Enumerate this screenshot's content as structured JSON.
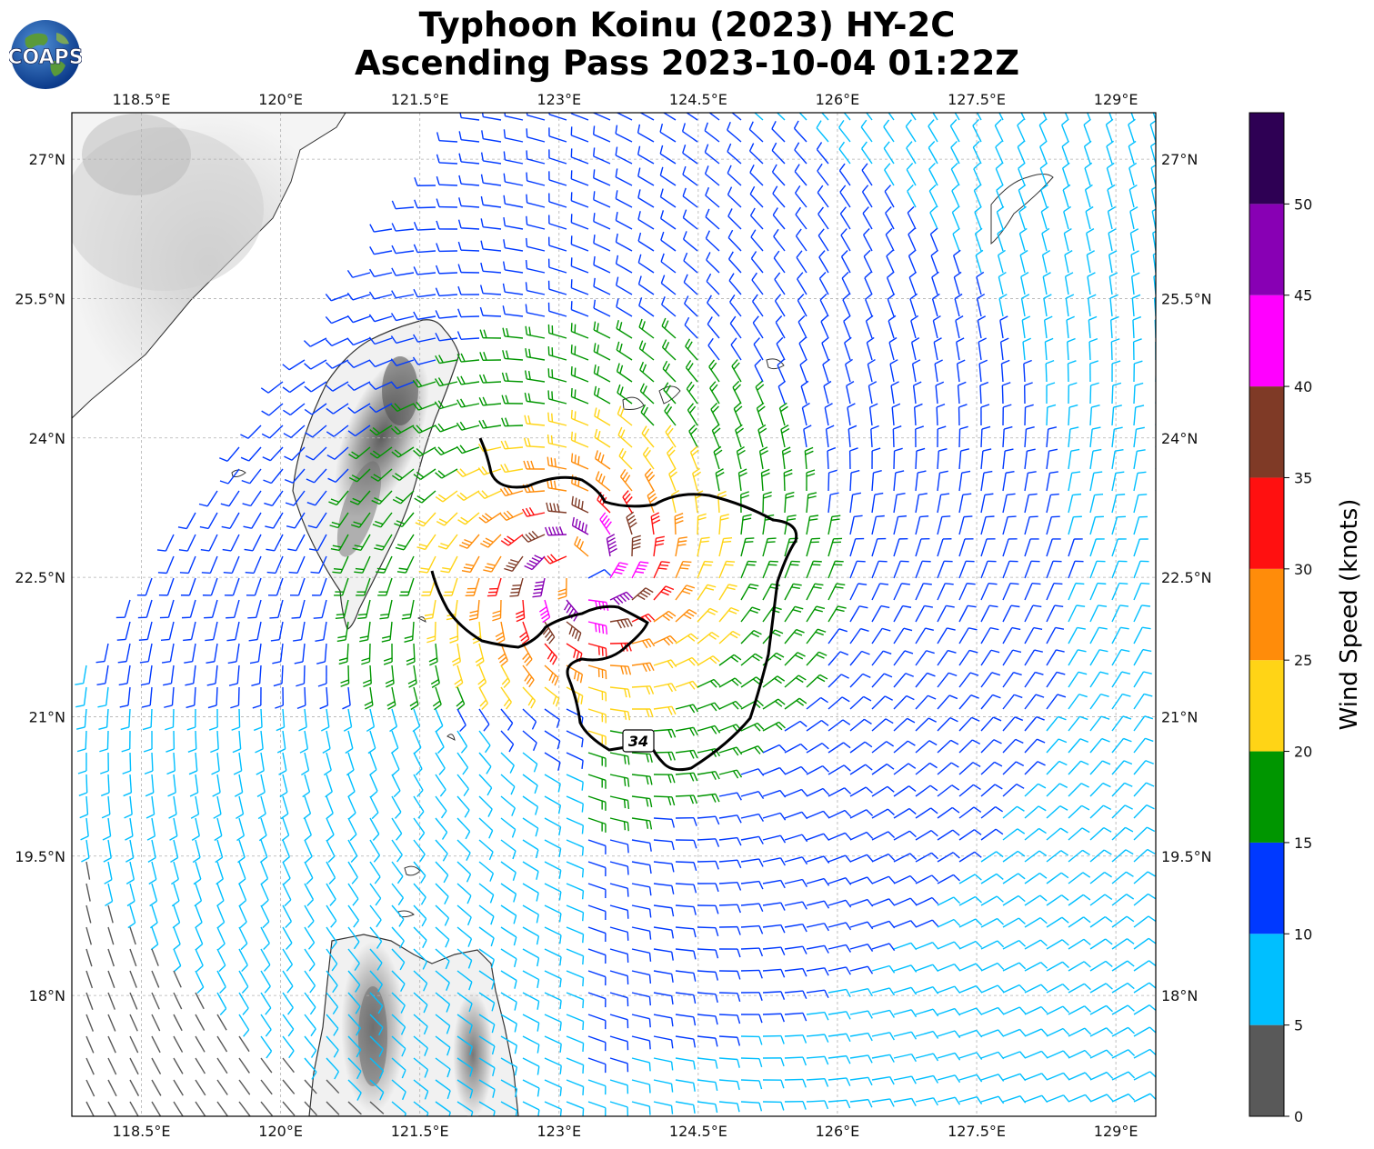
{
  "title": {
    "line1": "Typhoon Koinu (2023) HY-2C",
    "line2": "Ascending Pass 2023-10-04 01:22Z"
  },
  "logo": {
    "text": "COAPS",
    "icon": "globe-icon"
  },
  "map": {
    "lon_ticks": [
      "118.5°E",
      "120°E",
      "121.5°E",
      "123°E",
      "124.5°E",
      "126°E",
      "127.5°E",
      "129°E"
    ],
    "lat_ticks": [
      "27°N",
      "25.5°N",
      "24°N",
      "22.5°N",
      "21°N",
      "19.5°N",
      "18°N"
    ],
    "extent": {
      "lon_min": 117.75,
      "lon_max": 129.43,
      "lat_min": 16.7,
      "lat_max": 27.5
    },
    "contour_label": "34",
    "storm_center": {
      "lon": 123.25,
      "lat": 22.55
    },
    "gridlines": true
  },
  "colorbar": {
    "label": "Wind Speed (knots)",
    "ticks": [
      "0",
      "5",
      "10",
      "15",
      "20",
      "25",
      "30",
      "35",
      "40",
      "45",
      "50"
    ],
    "bins": [
      {
        "from": 0,
        "to": 5,
        "color": "#595959"
      },
      {
        "from": 5,
        "to": 10,
        "color": "#00BFFF"
      },
      {
        "from": 10,
        "to": 15,
        "color": "#0039FF"
      },
      {
        "from": 15,
        "to": 20,
        "color": "#009600"
      },
      {
        "from": 20,
        "to": 25,
        "color": "#FFD416"
      },
      {
        "from": 25,
        "to": 30,
        "color": "#FF8C0A"
      },
      {
        "from": 30,
        "to": 35,
        "color": "#FF1010"
      },
      {
        "from": 35,
        "to": 40,
        "color": "#7F3A26"
      },
      {
        "from": 40,
        "to": 45,
        "color": "#FF00FF"
      },
      {
        "from": 45,
        "to": 50,
        "color": "#8800B4"
      },
      {
        "from": 50,
        "to": 55,
        "color": "#2E0054"
      }
    ]
  }
}
